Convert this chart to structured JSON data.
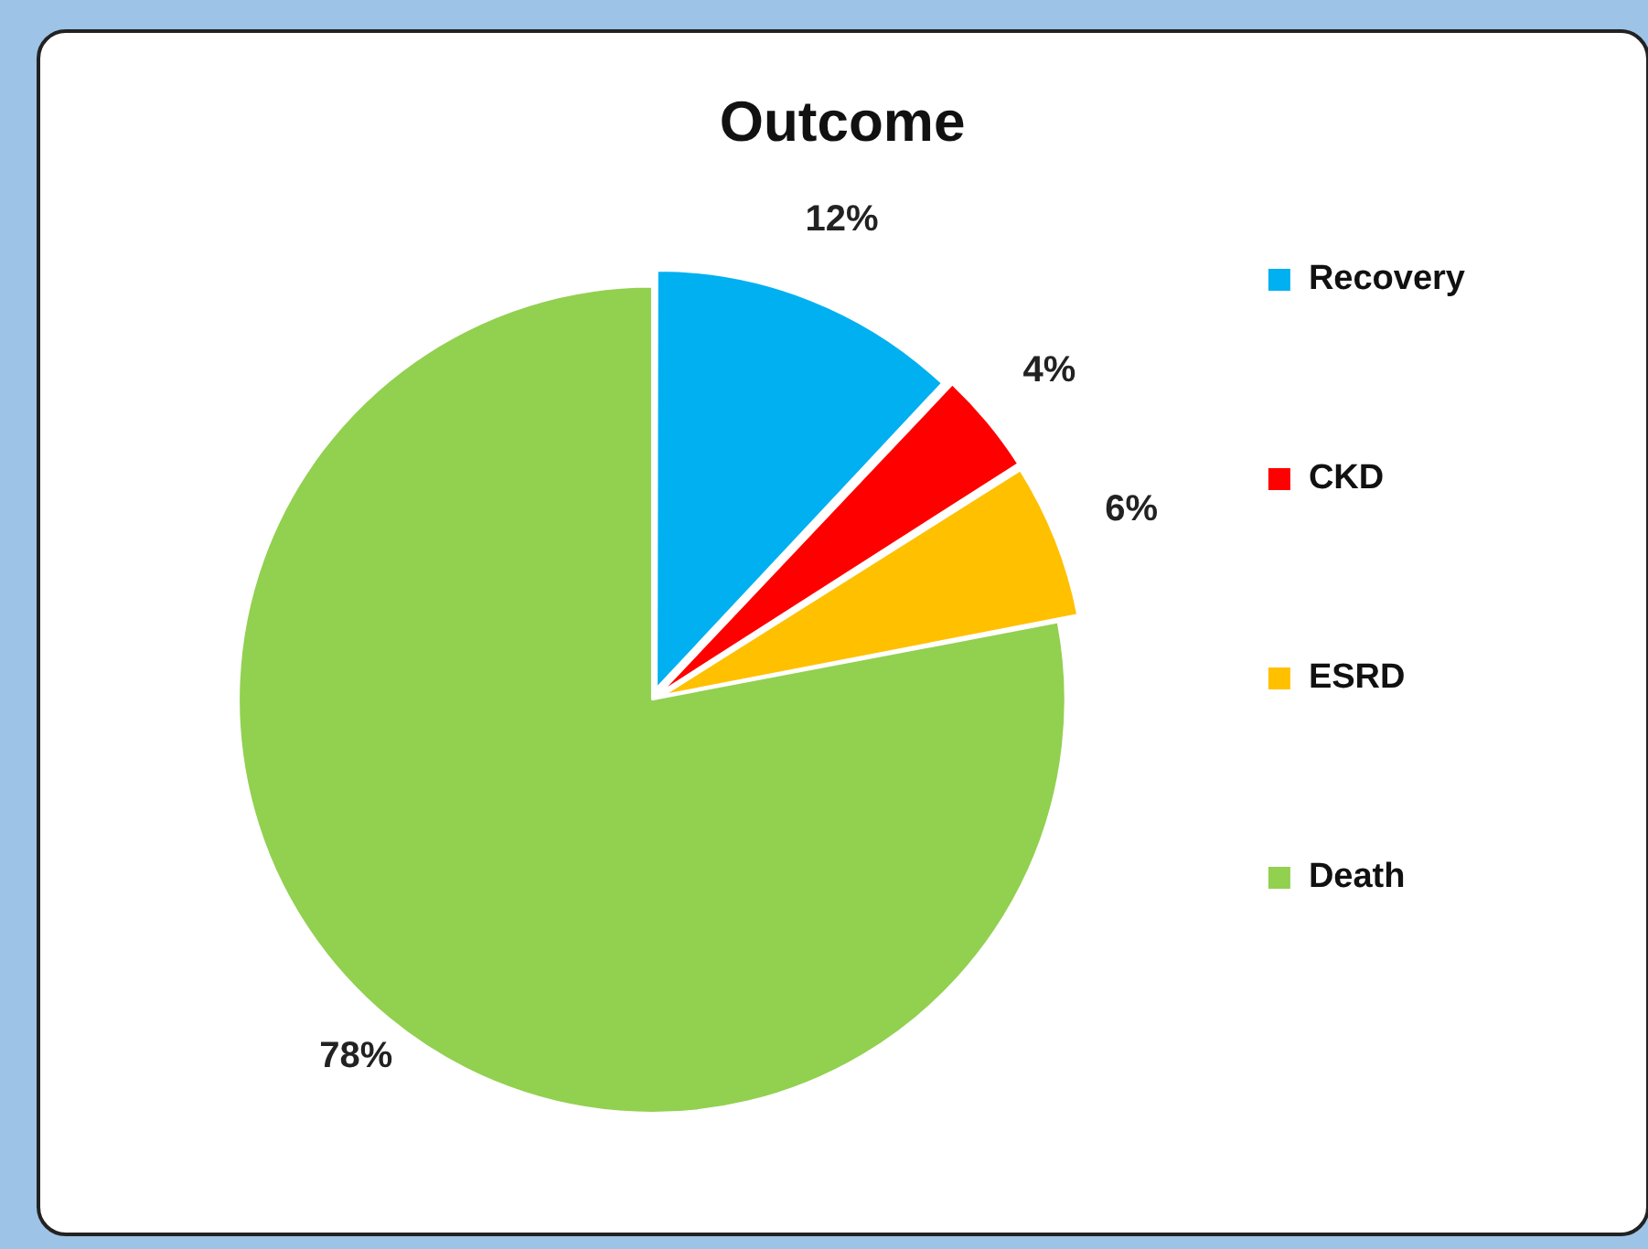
{
  "chart_data": {
    "type": "pie",
    "title": "Outcome",
    "categories": [
      "Recovery",
      "CKD",
      "ESRD",
      "Death"
    ],
    "values": [
      12,
      4,
      6,
      78
    ],
    "value_labels": [
      "12%",
      "4%",
      "6%",
      "78%"
    ],
    "colors": [
      "#00b0f0",
      "#ff0000",
      "#ffc000",
      "#92d050"
    ],
    "legend": "right"
  }
}
